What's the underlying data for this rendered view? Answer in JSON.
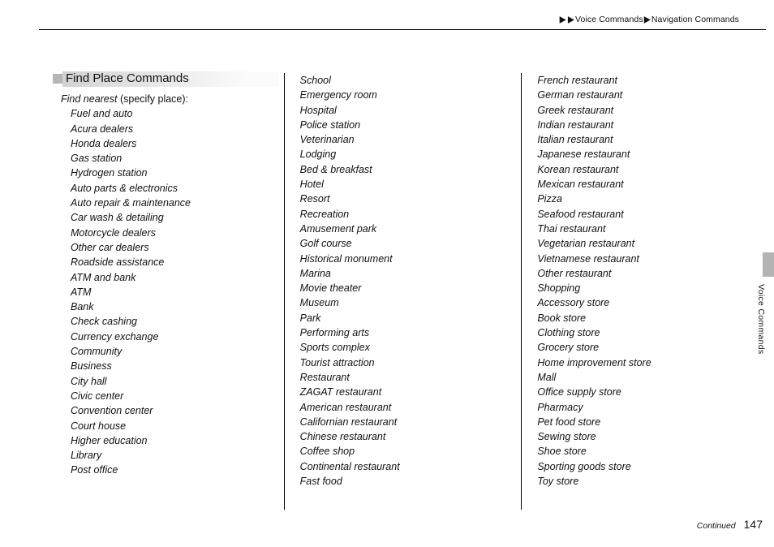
{
  "breadcrumb": {
    "seg1": "Voice Commands",
    "seg2": "Navigation Commands"
  },
  "side_label": "Voice Commands",
  "footer": {
    "continued": "Continued",
    "page_number": "147"
  },
  "section": {
    "title": "Find Place Commands",
    "intro_italic": "Find nearest",
    "intro_rest": " (specify place):"
  },
  "columns": {
    "col1": [
      "Fuel and auto",
      "Acura dealers",
      "Honda dealers",
      "Gas station",
      "Hydrogen station",
      "Auto parts & electronics",
      "Auto repair & maintenance",
      "Car wash & detailing",
      "Motorcycle dealers",
      "Other car dealers",
      "Roadside assistance",
      "ATM and bank",
      "ATM",
      "Bank",
      "Check cashing",
      "Currency exchange",
      "Community",
      "Business",
      "City hall",
      "Civic center",
      "Convention center",
      "Court house",
      "Higher education",
      "Library",
      "Post office"
    ],
    "col2": [
      "School",
      "Emergency room",
      "Hospital",
      "Police station",
      "Veterinarian",
      "Lodging",
      "Bed & breakfast",
      "Hotel",
      "Resort",
      "Recreation",
      "Amusement park",
      "Golf course",
      "Historical monument",
      "Marina",
      "Movie theater",
      "Museum",
      "Park",
      "Performing arts",
      "Sports complex",
      "Tourist attraction",
      "Restaurant",
      "ZAGAT restaurant",
      "American restaurant",
      "Californian restaurant",
      "Chinese restaurant",
      "Coffee shop",
      "Continental restaurant",
      "Fast food"
    ],
    "col3": [
      "French restaurant",
      "German restaurant",
      "Greek restaurant",
      "Indian restaurant",
      "Italian restaurant",
      "Japanese restaurant",
      "Korean restaurant",
      "Mexican restaurant",
      "Pizza",
      "Seafood restaurant",
      "Thai restaurant",
      "Vegetarian restaurant",
      "Vietnamese restaurant",
      "Other restaurant",
      "Shopping",
      "Accessory store",
      "Book store",
      "Clothing store",
      "Grocery store",
      "Home improvement store",
      "Mall",
      "Office supply store",
      "Pharmacy",
      "Pet food store",
      "Sewing store",
      "Shoe store",
      "Sporting goods store",
      "Toy store"
    ]
  }
}
